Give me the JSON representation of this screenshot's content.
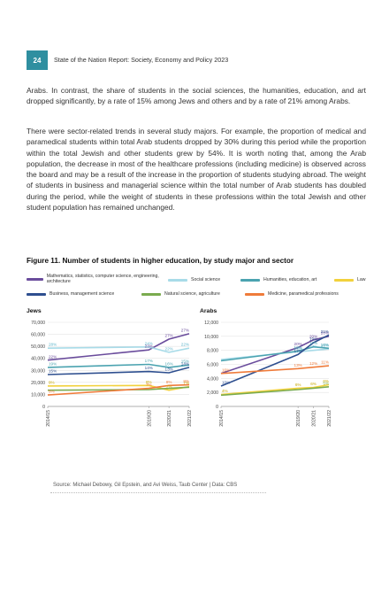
{
  "header": {
    "page_number": "24",
    "running_title": "State of the Nation Report: Society, Economy and Policy 2023"
  },
  "paragraphs": [
    "Arabs. In contrast, the share of students in the social sciences, the humanities, education, and art dropped significantly, by a rate of 15% among Jews and others and by a rate of 21% among Arabs.",
    "There were sector-related trends in several study majors. For example, the proportion of medical and paramedical students within total Arab students dropped by 30% during this period while the proportion within the total Jewish and other students grew by 54%. It is worth noting that, among the Arab population, the decrease in most of the healthcare professions (including medicine) is observed across the board and may be a result of the increase in the proportion of students studying abroad. The weight of students in business and managerial science within the total number of Arab students has doubled during the period, while the weight of students in these professions within the total Jewish and other student population has remained unchanged."
  ],
  "figure": {
    "title": "Figure 11. Number of students in higher education, by study major and sector",
    "source": "Source: Michael Debowy, Gil Epstein, and Avi Weiss, Taub Center | Data: CBS"
  },
  "legend": [
    {
      "name": "Mathematics, statistics, computer science, engineering, architecture",
      "color": "#6a4c9c"
    },
    {
      "name": "Social science",
      "color": "#a8dbe8"
    },
    {
      "name": "Humanities, education, art",
      "color": "#4ba3b0"
    },
    {
      "name": "Law",
      "color": "#f2d13c"
    },
    {
      "name": "Business, management science",
      "color": "#2e4f8f"
    },
    {
      "name": "Natural science, agriculture",
      "color": "#7aab4f"
    },
    {
      "name": "Medicine, paramedical professions",
      "color": "#ef7b3a"
    }
  ],
  "chart_data": [
    {
      "type": "line",
      "title": "Jews",
      "categories": [
        "2014/15",
        "2019/20",
        "2020/21",
        "2021/22"
      ],
      "x": [
        2014,
        2019,
        2020,
        2021
      ],
      "ylim": [
        0,
        70000
      ],
      "yticks": [
        0,
        10000,
        20000,
        30000,
        40000,
        50000,
        60000,
        70000
      ],
      "ytick_labels": [
        "0",
        "10,000",
        "20,000",
        "30,000",
        "40,000",
        "50,000",
        "60,000",
        "70,000"
      ],
      "series": [
        {
          "name": "Mathematics, statistics, computer science, engineering, architecture",
          "color": "#6a4c9c",
          "values": [
            38500,
            47000,
            56000,
            60500
          ],
          "labels": [
            "22%",
            "23%",
            "27%",
            "27%"
          ]
        },
        {
          "name": "Social science",
          "color": "#a8dbe8",
          "values": [
            48500,
            49500,
            45000,
            48500
          ],
          "labels": [
            "28%",
            "24%",
            "22%",
            "22%"
          ]
        },
        {
          "name": "Humanities, education, art",
          "color": "#4ba3b0",
          "values": [
            32500,
            35000,
            32500,
            34500
          ],
          "labels": [
            "19%",
            "17%",
            "16%",
            "15%"
          ]
        },
        {
          "name": "Law",
          "color": "#f2d13c",
          "values": [
            17000,
            17500,
            13500,
            16500
          ],
          "labels": [
            "9%",
            "8%",
            "7%",
            "7%"
          ]
        },
        {
          "name": "Business, management science",
          "color": "#2e4f8f",
          "values": [
            26500,
            29000,
            28000,
            32500
          ],
          "labels": [
            "15%",
            "14%",
            "13%",
            "14%"
          ]
        },
        {
          "name": "Natural science, agriculture",
          "color": "#7aab4f",
          "values": [
            13500,
            14000,
            15000,
            16000
          ],
          "labels": [
            "",
            "",
            "",
            ""
          ]
        },
        {
          "name": "Medicine, paramedical professions",
          "color": "#ef7b3a",
          "values": [
            9500,
            15000,
            17500,
            18000
          ],
          "labels": [
            "5%",
            "7%",
            "8%",
            "8%"
          ]
        }
      ]
    },
    {
      "type": "line",
      "title": "Arabs",
      "categories": [
        "2014/15",
        "2019/20",
        "2020/21",
        "2021/22"
      ],
      "x": [
        2014,
        2019,
        2020,
        2021
      ],
      "ylim": [
        0,
        12000
      ],
      "yticks": [
        0,
        2000,
        4000,
        6000,
        8000,
        10000,
        12000
      ],
      "ytick_labels": [
        "0",
        "2,000",
        "4,000",
        "6,000",
        "8,000",
        "10,000",
        "12,000"
      ],
      "series": [
        {
          "name": "Mathematics, statistics, computer science, engineering, architecture",
          "color": "#6a4c9c",
          "values": [
            4700,
            8400,
            9500,
            10000
          ],
          "labels": [
            "",
            "20%",
            "20%",
            "20%"
          ]
        },
        {
          "name": "Social science",
          "color": "#a8dbe8",
          "values": [
            6700,
            7800,
            8000,
            8200
          ],
          "labels": [
            "",
            "19%",
            "17%",
            "16%"
          ]
        },
        {
          "name": "Humanities, education, art",
          "color": "#4ba3b0",
          "values": [
            6500,
            7900,
            8500,
            8300
          ],
          "labels": [
            "",
            "19%",
            "17%",
            "16%"
          ]
        },
        {
          "name": "Law",
          "color": "#f2d13c",
          "values": [
            1700,
            2600,
            2700,
            3100
          ],
          "labels": [
            "4%",
            "6%",
            "6%",
            "6%"
          ]
        },
        {
          "name": "Business, management science",
          "color": "#2e4f8f",
          "values": [
            2900,
            7400,
            9100,
            10200
          ],
          "labels": [
            "10%",
            "17%",
            "19%",
            "21%"
          ]
        },
        {
          "name": "Natural science, agriculture",
          "color": "#7aab4f",
          "values": [
            1600,
            2400,
            2600,
            2800
          ],
          "labels": [
            "",
            "",
            "",
            "5%"
          ]
        },
        {
          "name": "Medicine, paramedical professions",
          "color": "#ef7b3a",
          "values": [
            4700,
            5400,
            5600,
            5800
          ],
          "labels": [
            "16%",
            "13%",
            "12%",
            "11%"
          ]
        }
      ]
    }
  ]
}
